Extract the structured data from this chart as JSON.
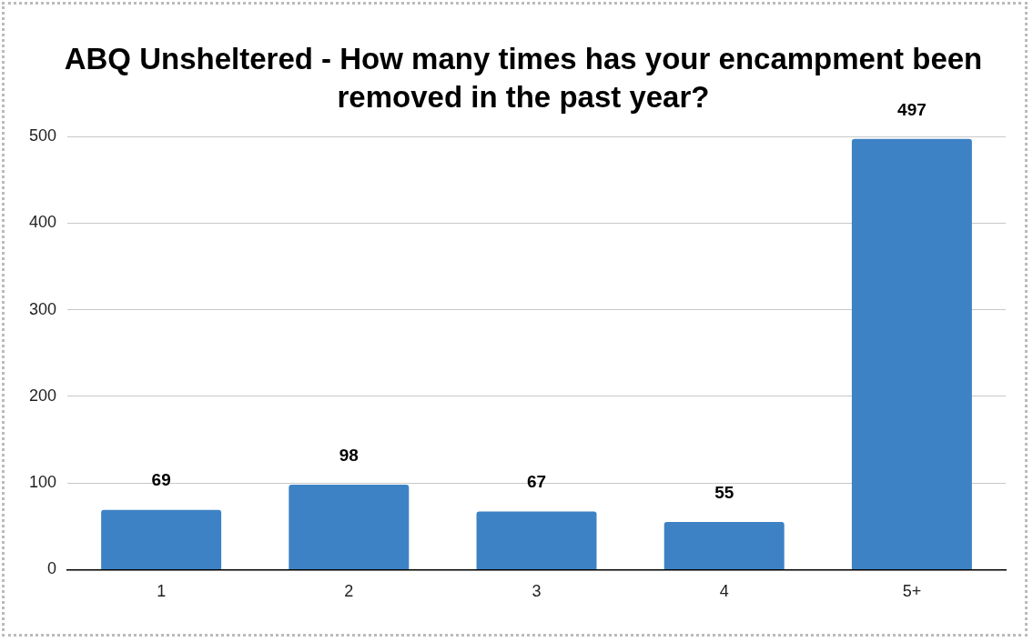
{
  "chart_data": {
    "type": "bar",
    "title": "ABQ Unsheltered - How many times has your encampment been removed in the past year?",
    "categories": [
      "1",
      "2",
      "3",
      "4",
      "5+"
    ],
    "values": [
      69,
      98,
      67,
      55,
      497
    ],
    "color": "#3d82c4",
    "ylim": [
      0,
      500
    ],
    "yticks": [
      0,
      100,
      200,
      300,
      400,
      500
    ],
    "grid": "y",
    "legend": false,
    "data_labels": true
  }
}
